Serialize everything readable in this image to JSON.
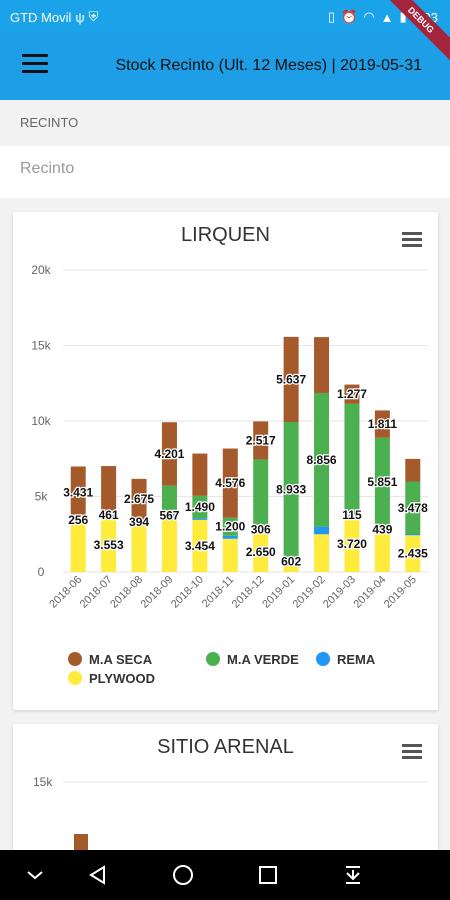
{
  "status_bar": {
    "carrier": "GTD Movil",
    "time": "1:23"
  },
  "app_bar": {
    "title": "Stock Recinto (Ult. 12 Meses) | 2019-05-31",
    "debug_label": "DEBUG"
  },
  "filter": {
    "label": "RECINTO",
    "placeholder": "Recinto"
  },
  "colors": {
    "app_bar": "#1e9ee6",
    "ma_seca": "#a55a2b",
    "ma_verde": "#4caf50",
    "rema": "#2196f3",
    "plywood": "#ffeb3b"
  },
  "chart_data": [
    {
      "type": "bar",
      "stacked": true,
      "title": "LIRQUEN",
      "categories": [
        "2018-06",
        "2018-07",
        "2018-08",
        "2018-09",
        "2018-10",
        "2018-11",
        "2018-12",
        "2019-01",
        "2019-02",
        "2019-03",
        "2019-04",
        "2019-05"
      ],
      "ylim": [
        0,
        20000
      ],
      "yticks": [
        "0",
        "5k",
        "10k",
        "15k",
        "20k"
      ],
      "series": [
        {
          "name": "PLYWOOD",
          "values": [
            3300,
            3553,
            3100,
            3450,
            3454,
            2200,
            2650,
            400,
            2500,
            3720,
            2600,
            2435
          ]
        },
        {
          "name": "REMA",
          "values": [
            256,
            461,
            394,
            567,
            100,
            200,
            306,
            602,
            500,
            115,
            439,
            80
          ]
        },
        {
          "name": "M.A VERDE",
          "values": [
            0,
            0,
            0,
            1700,
            1490,
            1200,
            4500,
            8933,
            8856,
            7300,
            5851,
            3478
          ]
        },
        {
          "name": "M.A SECA",
          "values": [
            3431,
            3000,
            2675,
            4201,
            2800,
            4576,
            2517,
            5637,
            3700,
            1277,
            1811,
            1500
          ]
        }
      ],
      "data_labels": [
        {
          "category": "2018-06",
          "series": "M.A SECA",
          "text": "3.431"
        },
        {
          "category": "2018-06",
          "series": "REMA",
          "text": "256"
        },
        {
          "category": "2018-07",
          "series": "REMA",
          "text": "461"
        },
        {
          "category": "2018-07",
          "series": "PLYWOOD",
          "text": "3.553"
        },
        {
          "category": "2018-08",
          "series": "M.A SECA",
          "text": "2.675"
        },
        {
          "category": "2018-08",
          "series": "REMA",
          "text": "394"
        },
        {
          "category": "2018-09",
          "series": "M.A SECA",
          "text": "4.201"
        },
        {
          "category": "2018-09",
          "series": "REMA",
          "text": "567"
        },
        {
          "category": "2018-10",
          "series": "M.A VERDE",
          "text": "1.490"
        },
        {
          "category": "2018-10",
          "series": "PLYWOOD",
          "text": "3.454"
        },
        {
          "category": "2018-11",
          "series": "M.A SECA",
          "text": "4.576"
        },
        {
          "category": "2018-11",
          "series": "M.A VERDE",
          "text": "1.200"
        },
        {
          "category": "2018-12",
          "series": "M.A SECA",
          "text": "2.517"
        },
        {
          "category": "2018-12",
          "series": "REMA",
          "text": "306"
        },
        {
          "category": "2018-12",
          "series": "PLYWOOD",
          "text": "2.650"
        },
        {
          "category": "2019-01",
          "series": "M.A SECA",
          "text": "5.637"
        },
        {
          "category": "2019-01",
          "series": "M.A VERDE",
          "text": "8.933"
        },
        {
          "category": "2019-01",
          "series": "REMA",
          "text": "602"
        },
        {
          "category": "2019-02",
          "series": "M.A VERDE",
          "text": "8.856"
        },
        {
          "category": "2019-03",
          "series": "M.A SECA",
          "text": "1.277"
        },
        {
          "category": "2019-03",
          "series": "REMA",
          "text": "115"
        },
        {
          "category": "2019-03",
          "series": "PLYWOOD",
          "text": "3.720"
        },
        {
          "category": "2019-04",
          "series": "M.A SECA",
          "text": "1.811"
        },
        {
          "category": "2019-04",
          "series": "M.A VERDE",
          "text": "5.851"
        },
        {
          "category": "2019-04",
          "series": "REMA",
          "text": "439"
        },
        {
          "category": "2019-05",
          "series": "M.A VERDE",
          "text": "3.478"
        },
        {
          "category": "2019-05",
          "series": "PLYWOOD",
          "text": "2.435"
        }
      ],
      "legend": [
        "M.A SECA",
        "M.A VERDE",
        "REMA",
        "PLYWOOD"
      ],
      "legend_placement": "bottom"
    },
    {
      "type": "bar",
      "stacked": true,
      "title": "SITIO ARENAL",
      "yticks": [
        "15k"
      ]
    }
  ],
  "icons": [
    "menu-icon",
    "chart-menu-icon",
    "nav-collapse-icon",
    "nav-back-icon",
    "nav-home-icon",
    "nav-recents-icon",
    "nav-notifications-icon"
  ]
}
